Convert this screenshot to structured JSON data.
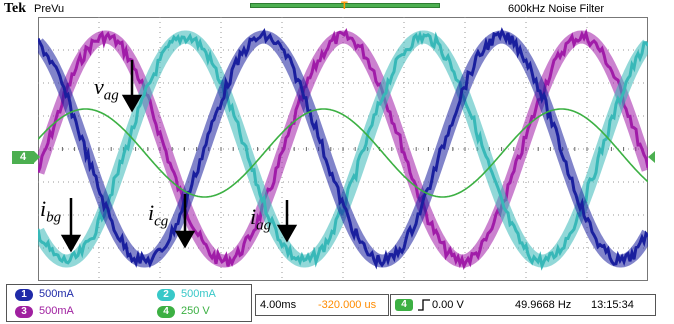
{
  "header": {
    "brand": "Tek",
    "mode": "PreVu",
    "filter": "600kHz  Noise Filter",
    "trigger_position_marker": "T"
  },
  "channel_marker": "4",
  "labels": {
    "vag": {
      "base": "v",
      "sub": "ag"
    },
    "ibg": {
      "base": "i",
      "sub": "bg"
    },
    "icg": {
      "base": "i",
      "sub": "cg"
    },
    "iag": {
      "base": "i",
      "sub": "ag"
    }
  },
  "status": {
    "ch1": {
      "num": "1",
      "scale": "500mA",
      "color": "#1f2aa8"
    },
    "ch2": {
      "num": "2",
      "scale": "500mA",
      "color": "#38c8c8"
    },
    "ch3": {
      "num": "3",
      "scale": "500mA",
      "color": "#a020a0"
    },
    "ch4": {
      "num": "4",
      "scale": "250 V",
      "color": "#3cb043"
    },
    "timebase": "4.00ms",
    "delay": "-320.000 us",
    "trigger_channel": "4",
    "trigger_level": "0.00 V",
    "frequency": "49.9668 Hz",
    "clock": "13:15:34"
  },
  "colors": {
    "phase_a_current": "#1a1f9e",
    "phase_b_current": "#38b8b8",
    "phase_c_current": "#a01ca8",
    "voltage": "#3cb043",
    "grid": "#9a9a9a"
  }
}
